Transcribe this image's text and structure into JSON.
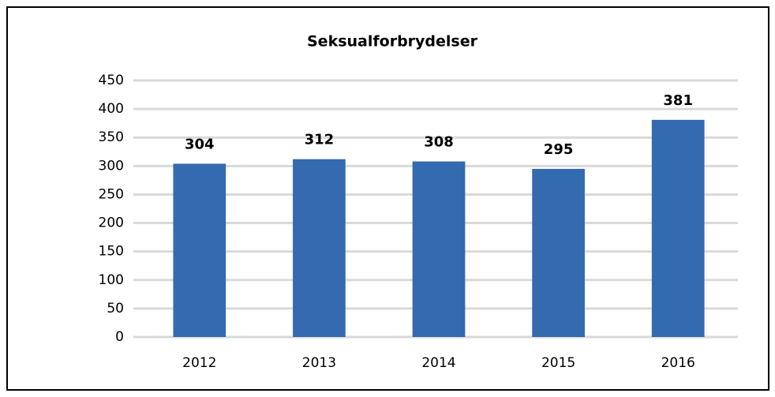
{
  "chart_data": {
    "type": "bar",
    "title": "Seksualforbrydelser",
    "categories": [
      "2012",
      "2013",
      "2014",
      "2015",
      "2016"
    ],
    "values": [
      304,
      312,
      308,
      295,
      381
    ],
    "color": "#346aaf",
    "ylim": [
      0,
      450
    ],
    "yticks": [
      0,
      50,
      100,
      150,
      200,
      250,
      300,
      350,
      400,
      450
    ],
    "grid": true,
    "data_labels": true
  }
}
